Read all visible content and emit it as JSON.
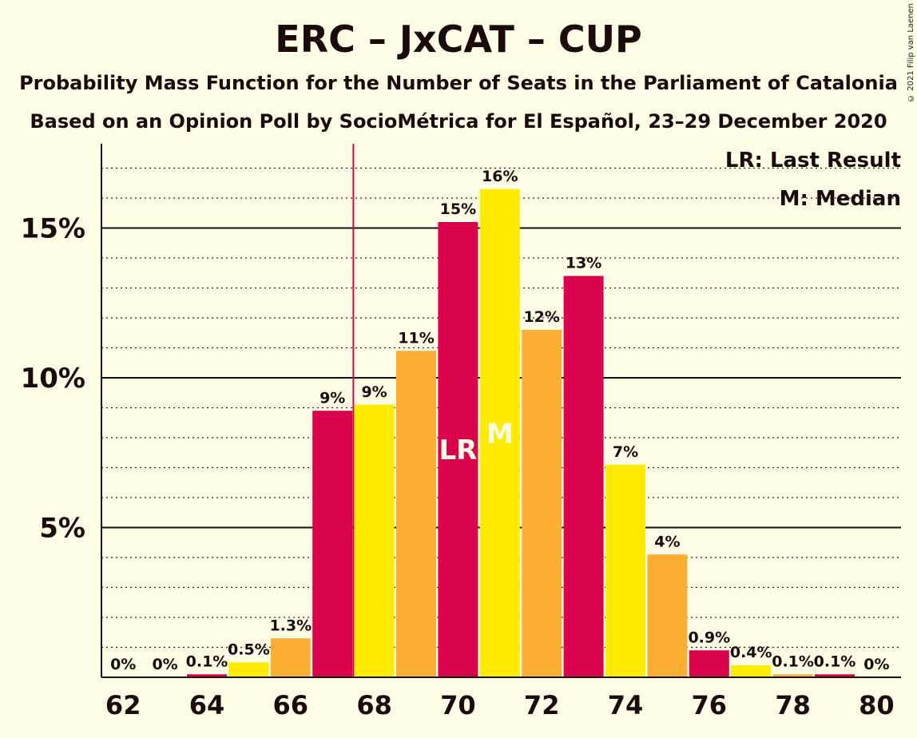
{
  "title": "ERC – JxCAT – CUP",
  "subtitle1": "Probability Mass Function for the Number of Seats in the Parliament of Catalonia",
  "subtitle2": "Based on an Opinion Poll by SocioMétrica for El Español, 23–29 December 2020",
  "copyright": "© 2021 Filip van Laenen",
  "legend": {
    "last_result": "LR: Last Result",
    "median": "M: Median"
  },
  "colors": {
    "background": "#FFFDE6",
    "erc": "#D9004C",
    "jxcat": "#FFEB00",
    "cup": "#FCAF32",
    "last_result_line": "#D9004C"
  },
  "chart_data": {
    "type": "bar",
    "categories": [
      62,
      63,
      64,
      65,
      66,
      67,
      68,
      69,
      70,
      71,
      72,
      73,
      74,
      75,
      76,
      77,
      78,
      79,
      80
    ],
    "values": [
      0,
      0,
      0.1,
      0.5,
      1.3,
      8.9,
      9.1,
      10.9,
      15.2,
      16.3,
      11.6,
      13.4,
      7.1,
      4.1,
      0.9,
      0.4,
      0.1,
      0.1,
      0
    ],
    "labels": [
      "0%",
      "0%",
      "0.1%",
      "0.5%",
      "1.3%",
      "9%",
      "9%",
      "11%",
      "15%",
      "16%",
      "12%",
      "13%",
      "7%",
      "4%",
      "0.9%",
      "0.4%",
      "0.1%",
      "0.1%",
      "0%"
    ],
    "bar_colors": [
      "#D9004C",
      "#FFEB00",
      "#D9004C",
      "#FFEB00",
      "#FCAF32",
      "#D9004C",
      "#FFEB00",
      "#FCAF32",
      "#D9004C",
      "#FFEB00",
      "#FCAF32",
      "#D9004C",
      "#FFEB00",
      "#FCAF32",
      "#D9004C",
      "#FFEB00",
      "#FCAF32",
      "#D9004C",
      "#FFEB00"
    ],
    "x_tick_labels": [
      "62",
      "64",
      "66",
      "68",
      "70",
      "72",
      "74",
      "76",
      "78",
      "80"
    ],
    "y_tick_labels": [
      "5%",
      "10%",
      "15%"
    ],
    "y_ticks": [
      5,
      10,
      15
    ],
    "ylim": [
      0,
      17.7
    ],
    "last_result": 67.5,
    "bar_marks": [
      {
        "category": 70,
        "text": "LR"
      },
      {
        "category": 71,
        "text": "M"
      }
    ]
  }
}
